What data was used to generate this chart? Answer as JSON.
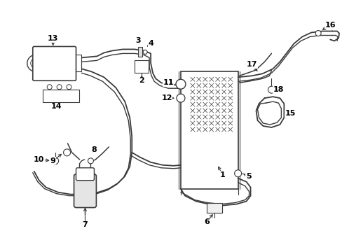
{
  "background_color": "#ffffff",
  "line_color": "#3a3a3a",
  "fig_width": 4.89,
  "fig_height": 3.6,
  "dpi": 100
}
